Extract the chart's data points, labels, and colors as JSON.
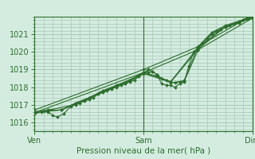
{
  "title": "",
  "xlabel": "Pression niveau de la mer( hPa )",
  "ylabel": "",
  "bg_color": "#d4ece0",
  "grid_color": "#a8c8b8",
  "line_color": "#2d6e2d",
  "marker_color": "#2d6e2d",
  "xlim": [
    0,
    48
  ],
  "ylim": [
    1015.5,
    1022.0
  ],
  "yticks": [
    1016,
    1017,
    1018,
    1019,
    1020,
    1021
  ],
  "xtick_positions": [
    0,
    24,
    48
  ],
  "xtick_labels": [
    "Ven",
    "Sam",
    "Dim"
  ],
  "vlines": [
    0,
    24,
    48
  ],
  "series": [
    [
      0.0,
      1016.5,
      1.5,
      1016.6,
      3.0,
      1016.6,
      4.0,
      1016.4,
      5.0,
      1016.3,
      6.5,
      1016.5,
      8.0,
      1016.9,
      9.0,
      1017.0,
      10.0,
      1017.1,
      11.0,
      1017.2,
      12.0,
      1017.3,
      13.0,
      1017.4,
      14.0,
      1017.6,
      15.0,
      1017.7,
      16.0,
      1017.8,
      17.0,
      1017.9,
      18.0,
      1018.0,
      19.0,
      1018.1,
      20.0,
      1018.2,
      21.0,
      1018.3,
      22.0,
      1018.4,
      23.0,
      1018.6,
      24.0,
      1018.8,
      25.0,
      1019.0,
      26.0,
      1018.9,
      27.0,
      1018.7,
      28.0,
      1018.2,
      29.0,
      1018.1,
      30.0,
      1018.1,
      31.0,
      1018.0,
      32.0,
      1018.2,
      33.0,
      1018.3,
      34.0,
      1019.2,
      35.0,
      1020.0,
      36.0,
      1020.2,
      37.0,
      1020.5,
      38.0,
      1020.8,
      39.0,
      1021.0,
      40.0,
      1021.2,
      41.0,
      1021.3,
      42.0,
      1021.4,
      43.0,
      1021.5,
      44.0,
      1021.6,
      45.0,
      1021.7,
      46.0,
      1021.8,
      47.0,
      1021.9,
      48.0,
      1022.0
    ],
    [
      0.0,
      1016.6,
      3.0,
      1016.7,
      6.0,
      1016.7,
      9.0,
      1017.1,
      12.0,
      1017.4,
      15.0,
      1017.8,
      18.0,
      1018.1,
      21.0,
      1018.4,
      24.0,
      1018.8,
      25.0,
      1018.85,
      26.0,
      1018.9,
      27.0,
      1018.7,
      28.0,
      1018.5,
      29.0,
      1018.4,
      30.0,
      1018.3,
      31.0,
      1018.25,
      32.0,
      1018.3,
      33.0,
      1018.4,
      36.0,
      1020.3,
      39.0,
      1021.1,
      42.0,
      1021.5,
      45.0,
      1021.75,
      48.0,
      1022.05
    ],
    [
      0.0,
      1016.5,
      3.0,
      1016.65,
      6.0,
      1016.7,
      9.0,
      1017.05,
      12.0,
      1017.35,
      15.0,
      1017.75,
      18.0,
      1018.05,
      21.0,
      1018.35,
      24.0,
      1018.75,
      27.0,
      1018.65,
      30.0,
      1018.25,
      33.0,
      1018.35,
      36.0,
      1020.1,
      39.0,
      1021.0,
      42.0,
      1021.4,
      45.0,
      1021.65,
      48.0,
      1021.95
    ],
    [
      0.0,
      1016.55,
      6.0,
      1016.72,
      12.0,
      1017.38,
      18.0,
      1018.08,
      24.0,
      1018.78,
      30.0,
      1018.28,
      36.0,
      1020.15,
      42.0,
      1021.42,
      48.0,
      1021.98
    ],
    [
      2.0,
      1016.65,
      8.0,
      1016.95,
      14.0,
      1017.6,
      20.0,
      1018.22,
      24.0,
      1018.85,
      30.0,
      1018.32,
      36.0,
      1020.25,
      42.0,
      1021.45,
      47.0,
      1021.85
    ],
    [
      0.0,
      1016.7,
      24.0,
      1019.0,
      36.0,
      1020.3,
      48.0,
      1022.1
    ],
    [
      0.0,
      1016.55,
      24.0,
      1018.82,
      36.0,
      1020.12,
      48.0,
      1021.92
    ]
  ]
}
